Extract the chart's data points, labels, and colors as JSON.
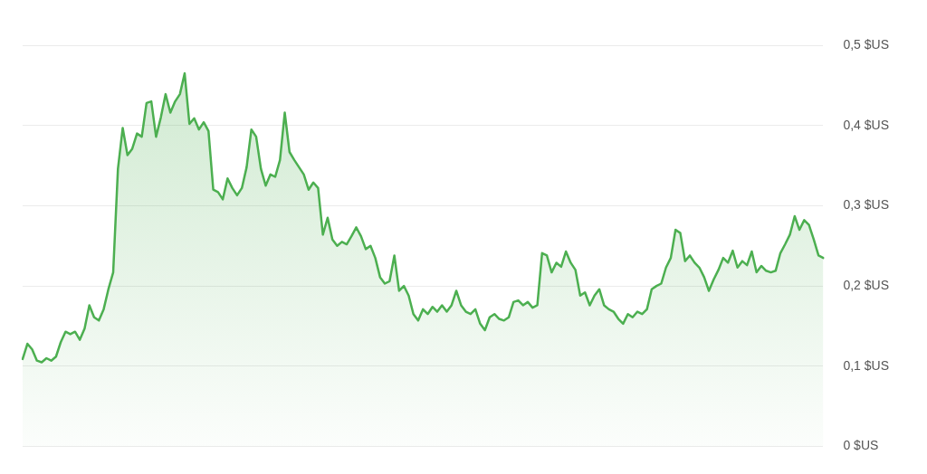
{
  "chart_data": {
    "type": "area",
    "categories": [
      null,
      null,
      null,
      null,
      null,
      null,
      null,
      null,
      null,
      null,
      null,
      null,
      null,
      null,
      null,
      null,
      null,
      null,
      null,
      null,
      null,
      null,
      null,
      null,
      null,
      null,
      null,
      null,
      null,
      null,
      null,
      null,
      null,
      null,
      null,
      null,
      null,
      null,
      null,
      null,
      null,
      null,
      null,
      null,
      null,
      null,
      null,
      null,
      null,
      null,
      null,
      null,
      null,
      null,
      null,
      null,
      null,
      null,
      null,
      null,
      null,
      null,
      null,
      null,
      null,
      null,
      null,
      null,
      null,
      null,
      null,
      null,
      null,
      null,
      null,
      null,
      null,
      null,
      null,
      null,
      null,
      null,
      null,
      null,
      null,
      null,
      null,
      null,
      null,
      null,
      null,
      null,
      null,
      null,
      null,
      null,
      null,
      null,
      null,
      null,
      null,
      null,
      null,
      null,
      null,
      null,
      null,
      null,
      null,
      null,
      null,
      null,
      null,
      null,
      null,
      null,
      null,
      null,
      null,
      null,
      null,
      null,
      null,
      null,
      null,
      null,
      null,
      null,
      null,
      null,
      null,
      null,
      null,
      null,
      null,
      null,
      null,
      null,
      null,
      null,
      null,
      null,
      null,
      null,
      null,
      null,
      null,
      null,
      null,
      null,
      null,
      null,
      null,
      null,
      null,
      null,
      null,
      null,
      null,
      null,
      null,
      null,
      null,
      null,
      null,
      null,
      null,
      null,
      null
    ],
    "series": [
      {
        "color": "#4caf50",
        "values": [
          0.109,
          0.128,
          0.121,
          0.107,
          0.105,
          0.11,
          0.107,
          0.112,
          0.13,
          0.143,
          0.14,
          0.143,
          0.133,
          0.147,
          0.176,
          0.161,
          0.157,
          0.171,
          0.196,
          0.217,
          0.346,
          0.397,
          0.363,
          0.371,
          0.39,
          0.386,
          0.428,
          0.43,
          0.386,
          0.41,
          0.439,
          0.416,
          0.43,
          0.439,
          0.465,
          0.402,
          0.409,
          0.395,
          0.404,
          0.393,
          0.32,
          0.317,
          0.308,
          0.334,
          0.322,
          0.313,
          0.322,
          0.348,
          0.395,
          0.386,
          0.346,
          0.325,
          0.339,
          0.336,
          0.357,
          0.416,
          0.367,
          0.357,
          0.348,
          0.339,
          0.32,
          0.329,
          0.322,
          0.264,
          0.285,
          0.258,
          0.25,
          0.255,
          0.252,
          0.262,
          0.273,
          0.262,
          0.246,
          0.25,
          0.235,
          0.211,
          0.203,
          0.206,
          0.238,
          0.194,
          0.2,
          0.188,
          0.165,
          0.157,
          0.171,
          0.165,
          0.174,
          0.168,
          0.176,
          0.168,
          0.176,
          0.194,
          0.176,
          0.168,
          0.165,
          0.171,
          0.153,
          0.145,
          0.161,
          0.165,
          0.159,
          0.157,
          0.161,
          0.18,
          0.182,
          0.176,
          0.18,
          0.173,
          0.176,
          0.241,
          0.238,
          0.217,
          0.229,
          0.224,
          0.243,
          0.229,
          0.22,
          0.188,
          0.192,
          0.176,
          0.188,
          0.196,
          0.176,
          0.171,
          0.168,
          0.159,
          0.153,
          0.165,
          0.161,
          0.168,
          0.165,
          0.171,
          0.196,
          0.2,
          0.203,
          0.223,
          0.235,
          0.27,
          0.266,
          0.231,
          0.238,
          0.229,
          0.223,
          0.211,
          0.194,
          0.208,
          0.22,
          0.235,
          0.229,
          0.244,
          0.223,
          0.231,
          0.226,
          0.243,
          0.217,
          0.225,
          0.219,
          0.217,
          0.219,
          0.241,
          0.252,
          0.264,
          0.287,
          0.27,
          0.282,
          0.276,
          0.258,
          0.238,
          0.235
        ]
      }
    ],
    "ylim": [
      0,
      0.5
    ],
    "yticks": [
      {
        "value": 0,
        "label": "0 $US"
      },
      {
        "value": 0.1,
        "label": "0,1 $US"
      },
      {
        "value": 0.2,
        "label": "0,2 $US"
      },
      {
        "value": 0.3,
        "label": "0,3 $US"
      },
      {
        "value": 0.4,
        "label": "0,4 $US"
      },
      {
        "value": 0.5,
        "label": "0,5 $US"
      }
    ],
    "grid": "y",
    "tick_labels": "y",
    "marker": "none",
    "line_style": "solid",
    "legend": false
  }
}
